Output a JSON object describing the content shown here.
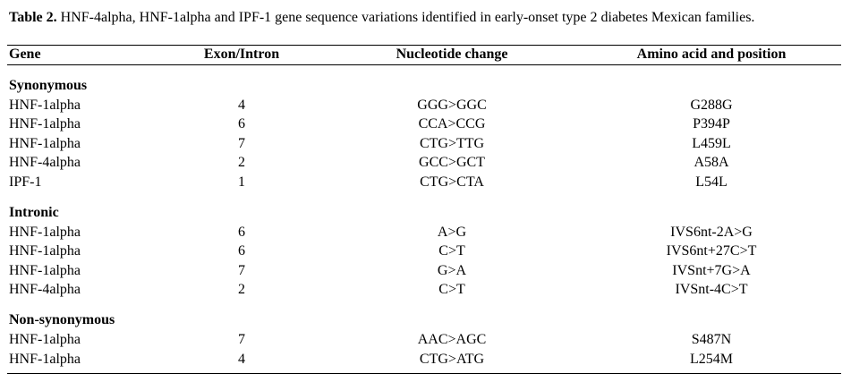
{
  "caption": {
    "label": "Table 2.",
    "text": "HNF-4alpha, HNF-1alpha and IPF-1 gene sequence variations identified in early-onset type 2 diabetes Mexican families."
  },
  "table": {
    "headers": [
      "Gene",
      "Exon/Intron",
      "Nucleotide change",
      "Amino acid and position"
    ],
    "sections": [
      {
        "title": "Synonymous",
        "rows": [
          [
            "HNF-1alpha",
            "4",
            "GGG>GGC",
            "G288G"
          ],
          [
            "HNF-1alpha",
            "6",
            "CCA>CCG",
            "P394P"
          ],
          [
            "HNF-1alpha",
            "7",
            "CTG>TTG",
            "L459L"
          ],
          [
            "HNF-4alpha",
            "2",
            "GCC>GCT",
            "A58A"
          ],
          [
            "IPF-1",
            "1",
            "CTG>CTA",
            "L54L"
          ]
        ]
      },
      {
        "title": "Intronic",
        "rows": [
          [
            "HNF-1alpha",
            "6",
            "A>G",
            "IVS6nt-2A>G"
          ],
          [
            "HNF-1alpha",
            "6",
            "C>T",
            "IVS6nt+27C>T"
          ],
          [
            "HNF-1alpha",
            "7",
            "G>A",
            "IVSnt+7G>A"
          ],
          [
            "HNF-4alpha",
            "2",
            "C>T",
            "IVSnt-4C>T"
          ]
        ]
      },
      {
        "title": "Non-synonymous",
        "rows": [
          [
            "HNF-1alpha",
            "7",
            "AAC>AGC",
            "S487N"
          ],
          [
            "HNF-1alpha",
            "4",
            "CTG>ATG",
            "L254M"
          ]
        ]
      }
    ]
  }
}
